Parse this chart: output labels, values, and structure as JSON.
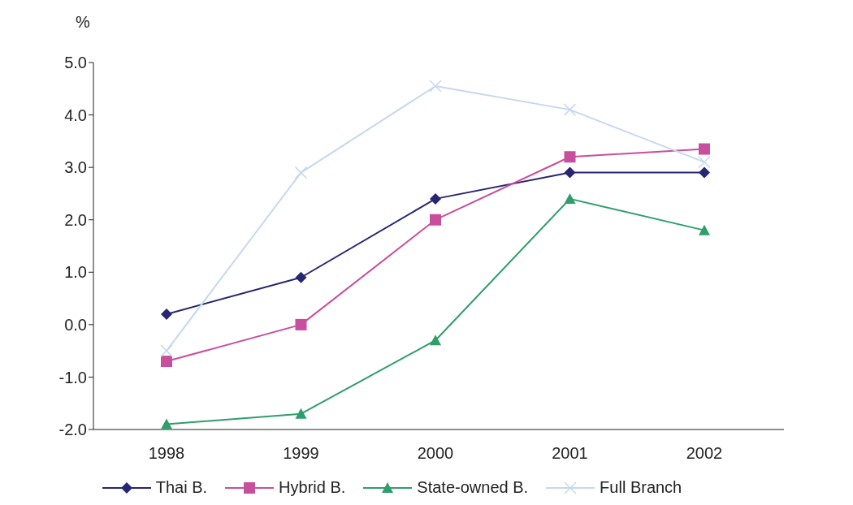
{
  "chart_data": {
    "type": "line",
    "ylabel": "%",
    "categories": [
      "1998",
      "1999",
      "2000",
      "2001",
      "2002"
    ],
    "series": [
      {
        "name": "Thai B.",
        "color": "#262673",
        "marker": "diamond",
        "values": [
          0.2,
          0.9,
          2.4,
          2.9,
          2.9
        ]
      },
      {
        "name": "Hybrid B.",
        "color": "#c84e9e",
        "marker": "square",
        "values": [
          -0.7,
          0.0,
          2.0,
          3.2,
          3.35
        ]
      },
      {
        "name": "State-owned B.",
        "color": "#2e9e6a",
        "marker": "triangle",
        "values": [
          -1.9,
          -1.7,
          -0.3,
          2.4,
          1.8
        ]
      },
      {
        "name": "Full Branch",
        "color": "#c6d8ee",
        "marker": "cross",
        "values": [
          -0.5,
          2.9,
          4.55,
          4.1,
          3.1
        ]
      }
    ],
    "ylim": [
      -2,
      5
    ],
    "yticks": [
      {
        "value": -2,
        "label": "-2.0"
      },
      {
        "value": -1,
        "label": "-1.0"
      },
      {
        "value": 0,
        "label": "0.0"
      },
      {
        "value": 1,
        "label": "1.0"
      },
      {
        "value": 2,
        "label": "2.0"
      },
      {
        "value": 3,
        "label": "3.0"
      },
      {
        "value": 4,
        "label": "4.0"
      },
      {
        "value": 5,
        "label": "5.0"
      }
    ],
    "grid": false,
    "legend": "bottom"
  }
}
